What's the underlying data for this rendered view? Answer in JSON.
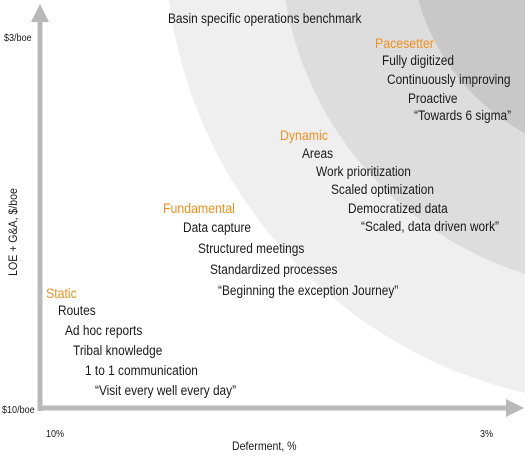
{
  "title": "Basin specific operations benchmark",
  "axes": {
    "y_label": "LOE + G&A, $/boe",
    "y_top": "$3/boe",
    "y_bottom": "$10/boe",
    "x_label": "Deferment, %",
    "x_left": "10%",
    "x_right": "3%"
  },
  "stages": [
    {
      "name": "Static",
      "items": [
        "Routes",
        "Ad hoc reports",
        "Tribal knowledge",
        "1 to 1 communication",
        "“Visit every well every day”"
      ]
    },
    {
      "name": "Fundamental",
      "items": [
        "Data capture",
        "Structured meetings",
        "Standardized processes",
        "“Beginning the exception Journey”"
      ]
    },
    {
      "name": "Dynamic",
      "items": [
        "Areas",
        "Work prioritization",
        "Scaled optimization",
        "Democratized data",
        "“Scaled, data driven work”"
      ]
    },
    {
      "name": "Pacesetter",
      "items": [
        "Fully digitized",
        "Continuously improving",
        "Proactive",
        "“Towards 6 sigma”"
      ]
    }
  ],
  "colors": {
    "stage_label": "#f0901e",
    "band_outer": "#efefef",
    "band_middle": "#dddddd",
    "band_inner": "#c8c8c8",
    "axis": "#b9b9b9",
    "text": "#1a1a1a"
  }
}
